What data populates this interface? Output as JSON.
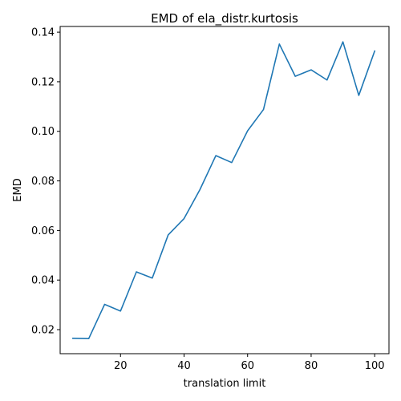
{
  "chart_data": {
    "type": "line",
    "title": "EMD of ela_distr.kurtosis",
    "xlabel": "translation limit",
    "ylabel": "EMD",
    "xlim": [
      1,
      104.5
    ],
    "ylim": [
      0.0103,
      0.1423
    ],
    "xticks": [
      20,
      40,
      60,
      80,
      100
    ],
    "yticks": [
      0.02,
      0.04,
      0.06,
      0.08,
      0.1,
      0.12,
      0.14
    ],
    "xtick_labels": [
      "20",
      "40",
      "60",
      "80",
      "100"
    ],
    "ytick_labels": [
      "0.02",
      "0.04",
      "0.06",
      "0.08",
      "0.10",
      "0.12",
      "0.14"
    ],
    "grid": false,
    "colors": {
      "line": "#1f77b4",
      "axes": "#000000",
      "background": "#ffffff"
    },
    "series": [
      {
        "x": [
          5,
          10,
          15,
          20,
          25,
          30,
          35,
          40,
          45,
          50,
          55,
          60,
          65,
          70,
          75,
          80,
          85,
          90,
          95,
          100
        ],
        "values": [
          0.0165,
          0.0164,
          0.0302,
          0.0275,
          0.0433,
          0.0408,
          0.0582,
          0.0648,
          0.0765,
          0.0902,
          0.0874,
          0.1002,
          0.1088,
          0.1352,
          0.1222,
          0.1248,
          0.1207,
          0.1361,
          0.1145,
          0.1324
        ]
      }
    ]
  }
}
